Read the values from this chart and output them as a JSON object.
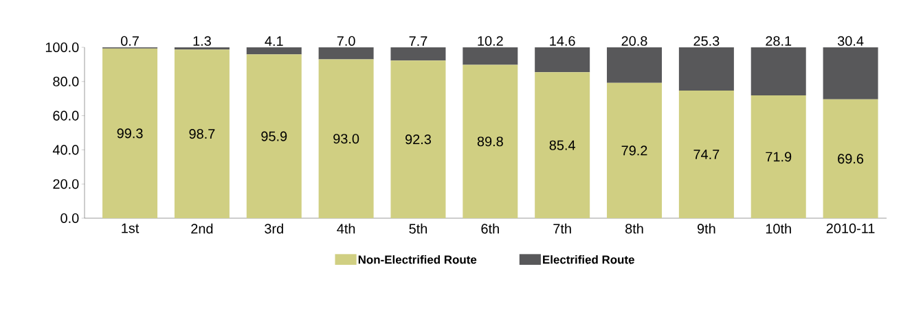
{
  "chart_data": {
    "type": "bar",
    "stacked": true,
    "legend": "bottom",
    "categories": [
      "1st",
      "2nd",
      "3rd",
      "4th",
      "5th",
      "6th",
      "7th",
      "8th",
      "9th",
      "10th",
      "2010-11"
    ],
    "series": [
      {
        "name": "Non-Electrified Route",
        "color": "#d0cf82",
        "values": [
          99.3,
          98.7,
          95.9,
          93.0,
          92.3,
          89.8,
          85.4,
          79.2,
          74.7,
          71.9,
          69.6
        ],
        "value_labels": [
          "99.3",
          "98.7",
          "95.9",
          "93.0",
          "92.3",
          "89.8",
          "85.4",
          "79.2",
          "74.7",
          "71.9",
          "69.6"
        ]
      },
      {
        "name": "Electrified Route",
        "color": "#58585a",
        "values": [
          0.7,
          1.3,
          4.1,
          7.0,
          7.7,
          10.2,
          14.6,
          20.8,
          25.3,
          28.1,
          30.4
        ],
        "value_labels": [
          "0.7",
          "1.3",
          "4.1",
          "7.0",
          "7.7",
          "10.2",
          "14.6",
          "20.8",
          "25.3",
          "28.1",
          "30.4"
        ]
      }
    ],
    "ylim": [
      0,
      100
    ],
    "yticks": [
      {
        "value": 0,
        "label": "0.0"
      },
      {
        "value": 20,
        "label": "20.0"
      },
      {
        "value": 40,
        "label": "40.0"
      },
      {
        "value": 60,
        "label": "60.0"
      },
      {
        "value": 80,
        "label": "80.0"
      },
      {
        "value": 100,
        "label": "100.0"
      }
    ]
  }
}
